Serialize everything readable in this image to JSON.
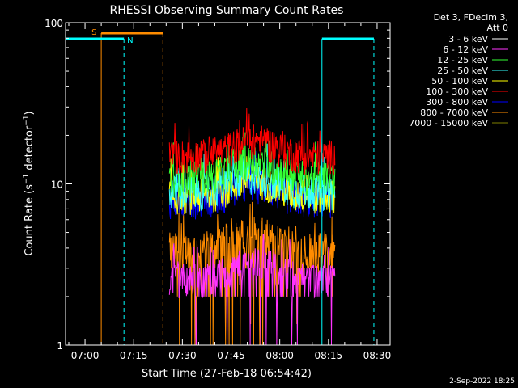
{
  "colors": {
    "background": "#000000",
    "axes": "#ffffff",
    "attenuator": "#ff8c00",
    "night": "#00ffff",
    "saa": "#ff8c00"
  },
  "chart_data": {
    "type": "line",
    "title": "RHESSI Observing Summary Count Rates",
    "xlabel": "Start Time (27-Feb-18 06:54:42)",
    "ylabel": "Count Rate (s⁻¹ detector⁻¹)",
    "ylabel_parts": {
      "main": "Count Rate (s",
      "sup1": "−1",
      "mid": " detector",
      "sup2": "−1",
      "end": ")"
    },
    "yscale": "log",
    "ylim": [
      1,
      100
    ],
    "xlim_minutes_after_0654": [
      0,
      100
    ],
    "x_ticks": [
      "07:00",
      "07:15",
      "07:30",
      "07:45",
      "08:00",
      "08:15",
      "08:30"
    ],
    "y_ticks": [
      "1",
      "10",
      "100"
    ],
    "legend_header": [
      "Det 3, FDecim 3,",
      "Att 0"
    ],
    "legend_placement": "top-right, outside plot",
    "series": [
      {
        "name": "3 - 6 keV",
        "color": "#ffffff",
        "level": 0
      },
      {
        "name": "6 - 12 keV",
        "color": "#ff33ff",
        "level": 2.6
      },
      {
        "name": "12 - 25 keV",
        "color": "#33ff33",
        "level": 11
      },
      {
        "name": "25 - 50 keV",
        "color": "#33ffff",
        "level": 9
      },
      {
        "name": "50 - 100 keV",
        "color": "#ffff00",
        "level": 8.5
      },
      {
        "name": "100 - 300 keV",
        "color": "#ff0000",
        "level": 15
      },
      {
        "name": "300 - 800 keV",
        "color": "#0000ff",
        "level": 8
      },
      {
        "name": "800 - 7000 keV",
        "color": "#ff8c00",
        "level": 4
      },
      {
        "name": "7000 - 15000 keV",
        "color": "#808000",
        "level": 0
      }
    ],
    "data_window": {
      "start": "07:26",
      "end": "08:17"
    },
    "annotations": [
      {
        "text": "S",
        "label": "SAA",
        "start": "07:05",
        "end": "07:24"
      },
      {
        "text": "N",
        "label": "Night",
        "start": "06:54",
        "end": "07:12"
      },
      {
        "text": "",
        "label": "Night",
        "start": "08:13",
        "end": "08:29"
      }
    ]
  },
  "footer": {
    "timestamp": "2-Sep-2022 18:25"
  }
}
